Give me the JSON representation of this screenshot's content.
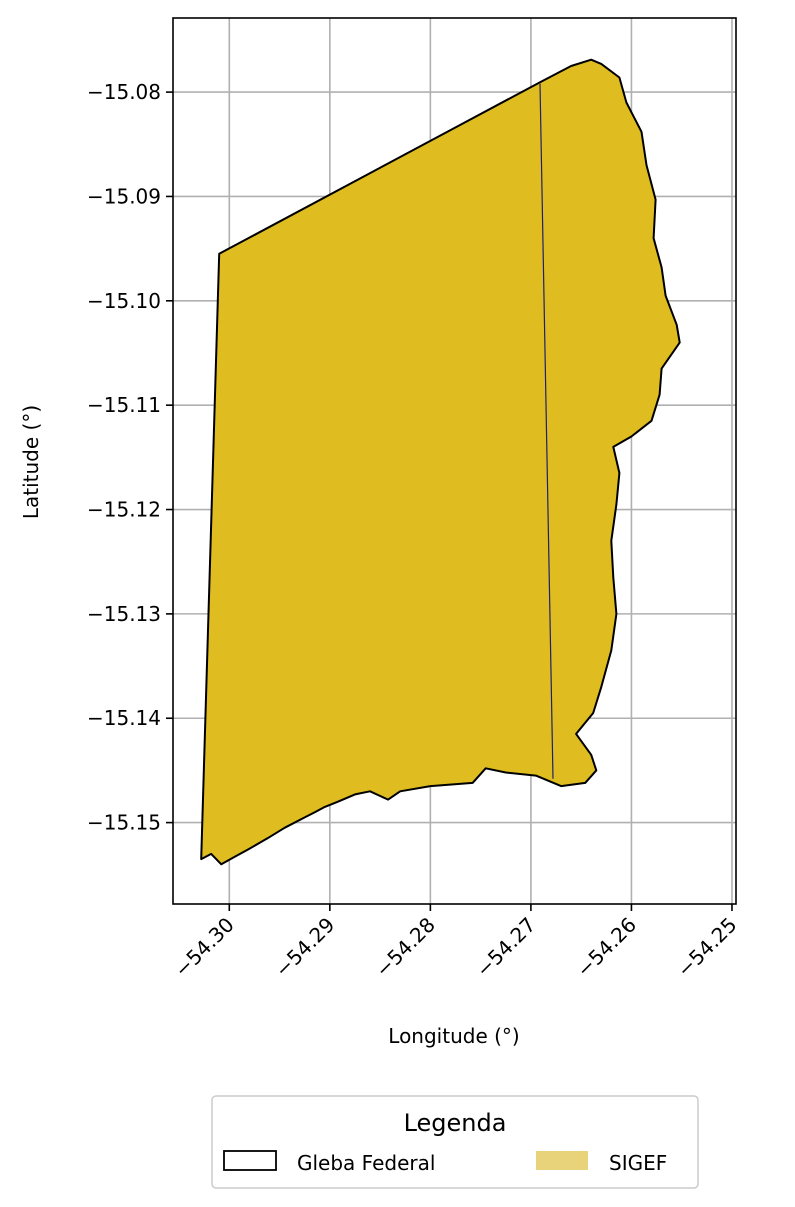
{
  "chart_data": {
    "type": "map",
    "xlabel": "Longitude (°)",
    "ylabel": "Latitude (°)",
    "xlim": [
      -54.3056,
      -54.2496
    ],
    "ylim": [
      -15.1578,
      -15.0729
    ],
    "x_ticks": [
      -54.3,
      -54.29,
      -54.28,
      -54.27,
      -54.26,
      -54.25
    ],
    "x_tick_labels": [
      "−54.30",
      "−54.29",
      "−54.28",
      "−54.27",
      "−54.26",
      "−54.25"
    ],
    "y_ticks": [
      -15.08,
      -15.09,
      -15.1,
      -15.11,
      -15.12,
      -15.13,
      -15.14,
      -15.15
    ],
    "y_tick_labels": [
      "−15.08",
      "−15.09",
      "−15.10",
      "−15.11",
      "−15.12",
      "−15.13",
      "−15.14",
      "−15.15"
    ],
    "grid": true,
    "legend": {
      "title": "Legenda",
      "placement": "bottom-center",
      "entries": [
        {
          "label": "Gleba Federal",
          "style": "outline",
          "color": "#000000"
        },
        {
          "label": "SIGEF",
          "style": "fill",
          "color": "#dfbd21"
        }
      ]
    },
    "series": [
      {
        "name": "SIGEF",
        "fill": "#dfbd21",
        "stroke": "#000000",
        "polygon": [
          [
            -54.301,
            -15.0955
          ],
          [
            -54.269,
            -15.079
          ],
          [
            -54.266,
            -15.0775
          ],
          [
            -54.264,
            -15.0769
          ],
          [
            -54.263,
            -15.0773
          ],
          [
            -54.2612,
            -15.0786
          ],
          [
            -54.2605,
            -15.081
          ],
          [
            -54.259,
            -15.0838
          ],
          [
            -54.2585,
            -15.087
          ],
          [
            -54.2576,
            -15.0903
          ],
          [
            -54.2578,
            -15.094
          ],
          [
            -54.257,
            -15.0968
          ],
          [
            -54.2566,
            -15.0995
          ],
          [
            -54.2555,
            -15.1023
          ],
          [
            -54.2552,
            -15.104
          ],
          [
            -54.257,
            -15.1065
          ],
          [
            -54.2572,
            -15.109
          ],
          [
            -54.258,
            -15.1115
          ],
          [
            -54.26,
            -15.113
          ],
          [
            -54.2618,
            -15.114
          ],
          [
            -54.2612,
            -15.1165
          ],
          [
            -54.2615,
            -15.1195
          ],
          [
            -54.262,
            -15.123
          ],
          [
            -54.2618,
            -15.1265
          ],
          [
            -54.2615,
            -15.13
          ],
          [
            -54.262,
            -15.1335
          ],
          [
            -54.263,
            -15.137
          ],
          [
            -54.2638,
            -15.1395
          ],
          [
            -54.2655,
            -15.1415
          ],
          [
            -54.264,
            -15.1435
          ],
          [
            -54.2635,
            -15.145
          ],
          [
            -54.2646,
            -15.1462
          ],
          [
            -54.267,
            -15.1465
          ],
          [
            -54.2695,
            -15.1455
          ],
          [
            -54.2725,
            -15.1452
          ],
          [
            -54.2745,
            -15.1448
          ],
          [
            -54.2758,
            -15.1462
          ],
          [
            -54.28,
            -15.1465
          ],
          [
            -54.283,
            -15.147
          ],
          [
            -54.2842,
            -15.1478
          ],
          [
            -54.286,
            -15.147
          ],
          [
            -54.2875,
            -15.1473
          ],
          [
            -54.2892,
            -15.148
          ],
          [
            -54.2905,
            -15.1485
          ],
          [
            -54.2915,
            -15.149
          ],
          [
            -54.2925,
            -15.1495
          ],
          [
            -54.2945,
            -15.1505
          ],
          [
            -54.2962,
            -15.1515
          ],
          [
            -54.298,
            -15.1525
          ],
          [
            -54.2995,
            -15.1533
          ],
          [
            -54.3008,
            -15.154
          ],
          [
            -54.3018,
            -15.153
          ],
          [
            -54.3028,
            -15.1535
          ],
          [
            -54.301,
            -15.0955
          ]
        ]
      },
      {
        "name": "Gleba Federal",
        "stroke": "#1f1f6b",
        "line": [
          [
            -54.2691,
            -15.0792
          ],
          [
            -54.2678,
            -15.1458
          ]
        ]
      }
    ]
  }
}
